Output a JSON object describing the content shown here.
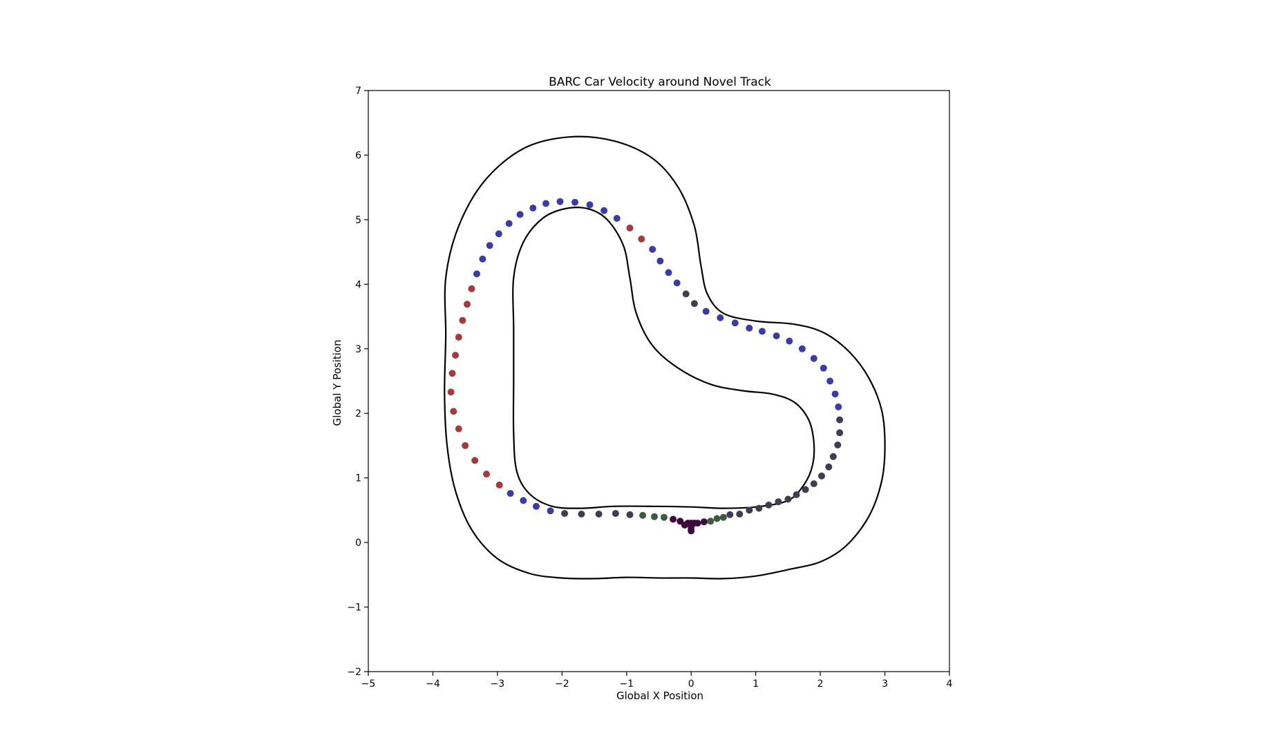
{
  "chart_data": {
    "type": "scatter",
    "title": "BARC Car Velocity around Novel Track",
    "xlabel": "Global X Position",
    "ylabel": "Global Y Position",
    "xlim": [
      -5,
      4
    ],
    "ylim": [
      -2,
      7
    ],
    "xticks": [
      -5,
      -4,
      -3,
      -2,
      -1,
      0,
      1,
      2,
      3,
      4
    ],
    "yticks": [
      -2,
      -1,
      0,
      1,
      2,
      3,
      4,
      5,
      6,
      7
    ],
    "grid": false,
    "colors": {
      "blue": "#3b3ca3",
      "red": "#a33b3c",
      "gray": "#3f3e4f",
      "green": "#3e5a40",
      "purple": "#3c0a3c"
    },
    "track": {
      "outer": [
        [
          0,
          -0.55
        ],
        [
          0.5,
          -0.56
        ],
        [
          1.0,
          -0.52
        ],
        [
          1.5,
          -0.42
        ],
        [
          2.0,
          -0.3
        ],
        [
          2.4,
          -0.05
        ],
        [
          2.75,
          0.4
        ],
        [
          2.95,
          0.95
        ],
        [
          3.0,
          1.5
        ],
        [
          2.95,
          2.05
        ],
        [
          2.75,
          2.55
        ],
        [
          2.45,
          2.95
        ],
        [
          2.05,
          3.25
        ],
        [
          1.6,
          3.38
        ],
        [
          1.0,
          3.43
        ],
        [
          0.5,
          3.55
        ],
        [
          0.25,
          3.85
        ],
        [
          0.15,
          4.3
        ],
        [
          0.05,
          4.9
        ],
        [
          -0.2,
          5.5
        ],
        [
          -0.6,
          5.95
        ],
        [
          -1.2,
          6.22
        ],
        [
          -1.9,
          6.28
        ],
        [
          -2.6,
          6.1
        ],
        [
          -3.2,
          5.6
        ],
        [
          -3.6,
          4.9
        ],
        [
          -3.8,
          4.1
        ],
        [
          -3.8,
          3.2
        ],
        [
          -3.82,
          2.3
        ],
        [
          -3.78,
          1.5
        ],
        [
          -3.65,
          0.8
        ],
        [
          -3.4,
          0.2
        ],
        [
          -3.0,
          -0.25
        ],
        [
          -2.5,
          -0.48
        ],
        [
          -2.0,
          -0.55
        ],
        [
          -1.5,
          -0.56
        ],
        [
          -1.0,
          -0.54
        ],
        [
          -0.5,
          -0.55
        ],
        [
          0,
          -0.55
        ]
      ],
      "inner": [
        [
          0,
          0.55
        ],
        [
          0.5,
          0.53
        ],
        [
          1.0,
          0.55
        ],
        [
          1.5,
          0.65
        ],
        [
          1.75,
          0.9
        ],
        [
          1.88,
          1.2
        ],
        [
          1.9,
          1.55
        ],
        [
          1.82,
          1.9
        ],
        [
          1.6,
          2.17
        ],
        [
          1.25,
          2.3
        ],
        [
          0.8,
          2.35
        ],
        [
          0.3,
          2.45
        ],
        [
          -0.2,
          2.7
        ],
        [
          -0.6,
          3.05
        ],
        [
          -0.85,
          3.55
        ],
        [
          -0.95,
          4.1
        ],
        [
          -1.05,
          4.6
        ],
        [
          -1.3,
          5.0
        ],
        [
          -1.6,
          5.17
        ],
        [
          -1.95,
          5.17
        ],
        [
          -2.3,
          5.02
        ],
        [
          -2.6,
          4.65
        ],
        [
          -2.75,
          4.1
        ],
        [
          -2.75,
          3.3
        ],
        [
          -2.75,
          2.5
        ],
        [
          -2.75,
          1.7
        ],
        [
          -2.7,
          1.1
        ],
        [
          -2.5,
          0.75
        ],
        [
          -2.15,
          0.56
        ],
        [
          -1.7,
          0.53
        ],
        [
          -1.2,
          0.56
        ],
        [
          -0.6,
          0.56
        ],
        [
          0,
          0.55
        ]
      ]
    },
    "points": [
      {
        "x": -0.1,
        "y": 0.27,
        "c": "purple"
      },
      {
        "x": -0.05,
        "y": 0.3,
        "c": "purple"
      },
      {
        "x": 0.0,
        "y": 0.3,
        "c": "purple"
      },
      {
        "x": 0.05,
        "y": 0.3,
        "c": "purple"
      },
      {
        "x": 0.1,
        "y": 0.3,
        "c": "purple"
      },
      {
        "x": 0.0,
        "y": 0.25,
        "c": "purple"
      },
      {
        "x": 0.0,
        "y": 0.2,
        "c": "purple"
      },
      {
        "x": 0.0,
        "y": 0.18,
        "c": "purple"
      },
      {
        "x": 0.2,
        "y": 0.32,
        "c": "purple"
      },
      {
        "x": 0.3,
        "y": 0.33,
        "c": "green"
      },
      {
        "x": 0.4,
        "y": 0.37,
        "c": "green"
      },
      {
        "x": 0.5,
        "y": 0.39,
        "c": "green"
      },
      {
        "x": 0.6,
        "y": 0.43,
        "c": "gray"
      },
      {
        "x": 0.75,
        "y": 0.44,
        "c": "gray"
      },
      {
        "x": 0.9,
        "y": 0.5,
        "c": "gray"
      },
      {
        "x": 1.05,
        "y": 0.53,
        "c": "gray"
      },
      {
        "x": 1.2,
        "y": 0.58,
        "c": "gray"
      },
      {
        "x": 1.35,
        "y": 0.63,
        "c": "gray"
      },
      {
        "x": 1.5,
        "y": 0.67,
        "c": "gray"
      },
      {
        "x": 1.63,
        "y": 0.74,
        "c": "gray"
      },
      {
        "x": 1.77,
        "y": 0.82,
        "c": "gray"
      },
      {
        "x": 1.9,
        "y": 0.91,
        "c": "gray"
      },
      {
        "x": 2.02,
        "y": 1.03,
        "c": "gray"
      },
      {
        "x": 2.13,
        "y": 1.17,
        "c": "gray"
      },
      {
        "x": 2.2,
        "y": 1.33,
        "c": "gray"
      },
      {
        "x": 2.27,
        "y": 1.51,
        "c": "gray"
      },
      {
        "x": 2.3,
        "y": 1.7,
        "c": "gray"
      },
      {
        "x": 2.3,
        "y": 1.9,
        "c": "gray"
      },
      {
        "x": 2.28,
        "y": 2.1,
        "c": "blue"
      },
      {
        "x": 2.23,
        "y": 2.3,
        "c": "blue"
      },
      {
        "x": 2.15,
        "y": 2.5,
        "c": "blue"
      },
      {
        "x": 2.05,
        "y": 2.7,
        "c": "blue"
      },
      {
        "x": 1.9,
        "y": 2.85,
        "c": "blue"
      },
      {
        "x": 1.72,
        "y": 3.0,
        "c": "blue"
      },
      {
        "x": 1.52,
        "y": 3.12,
        "c": "blue"
      },
      {
        "x": 1.32,
        "y": 3.2,
        "c": "blue"
      },
      {
        "x": 1.1,
        "y": 3.27,
        "c": "blue"
      },
      {
        "x": 0.9,
        "y": 3.32,
        "c": "blue"
      },
      {
        "x": 0.68,
        "y": 3.4,
        "c": "blue"
      },
      {
        "x": 0.45,
        "y": 3.48,
        "c": "blue"
      },
      {
        "x": 0.23,
        "y": 3.58,
        "c": "blue"
      },
      {
        "x": 0.05,
        "y": 3.7,
        "c": "gray"
      },
      {
        "x": -0.08,
        "y": 3.85,
        "c": "gray"
      },
      {
        "x": -0.22,
        "y": 4.02,
        "c": "blue"
      },
      {
        "x": -0.35,
        "y": 4.18,
        "c": "blue"
      },
      {
        "x": -0.48,
        "y": 4.36,
        "c": "blue"
      },
      {
        "x": -0.6,
        "y": 4.54,
        "c": "blue"
      },
      {
        "x": -0.77,
        "y": 4.7,
        "c": "red"
      },
      {
        "x": -0.95,
        "y": 4.87,
        "c": "red"
      },
      {
        "x": -1.15,
        "y": 5.02,
        "c": "blue"
      },
      {
        "x": -1.35,
        "y": 5.14,
        "c": "blue"
      },
      {
        "x": -1.57,
        "y": 5.23,
        "c": "blue"
      },
      {
        "x": -1.8,
        "y": 5.27,
        "c": "blue"
      },
      {
        "x": -2.03,
        "y": 5.28,
        "c": "blue"
      },
      {
        "x": -2.25,
        "y": 5.25,
        "c": "blue"
      },
      {
        "x": -2.45,
        "y": 5.18,
        "c": "blue"
      },
      {
        "x": -2.65,
        "y": 5.08,
        "c": "blue"
      },
      {
        "x": -2.82,
        "y": 4.94,
        "c": "blue"
      },
      {
        "x": -2.98,
        "y": 4.78,
        "c": "blue"
      },
      {
        "x": -3.12,
        "y": 4.6,
        "c": "blue"
      },
      {
        "x": -3.23,
        "y": 4.39,
        "c": "blue"
      },
      {
        "x": -3.32,
        "y": 4.16,
        "c": "blue"
      },
      {
        "x": -3.4,
        "y": 3.93,
        "c": "red"
      },
      {
        "x": -3.47,
        "y": 3.69,
        "c": "red"
      },
      {
        "x": -3.54,
        "y": 3.44,
        "c": "red"
      },
      {
        "x": -3.6,
        "y": 3.18,
        "c": "red"
      },
      {
        "x": -3.65,
        "y": 2.9,
        "c": "red"
      },
      {
        "x": -3.7,
        "y": 2.62,
        "c": "red"
      },
      {
        "x": -3.72,
        "y": 2.33,
        "c": "red"
      },
      {
        "x": -3.68,
        "y": 2.03,
        "c": "red"
      },
      {
        "x": -3.6,
        "y": 1.76,
        "c": "red"
      },
      {
        "x": -3.5,
        "y": 1.5,
        "c": "red"
      },
      {
        "x": -3.35,
        "y": 1.27,
        "c": "red"
      },
      {
        "x": -3.17,
        "y": 1.06,
        "c": "red"
      },
      {
        "x": -2.97,
        "y": 0.89,
        "c": "red"
      },
      {
        "x": -2.8,
        "y": 0.76,
        "c": "blue"
      },
      {
        "x": -2.6,
        "y": 0.65,
        "c": "blue"
      },
      {
        "x": -2.4,
        "y": 0.56,
        "c": "blue"
      },
      {
        "x": -2.18,
        "y": 0.49,
        "c": "blue"
      },
      {
        "x": -1.96,
        "y": 0.45,
        "c": "gray"
      },
      {
        "x": -1.7,
        "y": 0.44,
        "c": "gray"
      },
      {
        "x": -1.43,
        "y": 0.44,
        "c": "gray"
      },
      {
        "x": -1.17,
        "y": 0.45,
        "c": "gray"
      },
      {
        "x": -0.95,
        "y": 0.43,
        "c": "gray"
      },
      {
        "x": -0.75,
        "y": 0.42,
        "c": "green"
      },
      {
        "x": -0.57,
        "y": 0.4,
        "c": "green"
      },
      {
        "x": -0.42,
        "y": 0.39,
        "c": "green"
      },
      {
        "x": -0.28,
        "y": 0.36,
        "c": "purple"
      },
      {
        "x": -0.17,
        "y": 0.33,
        "c": "purple"
      }
    ]
  }
}
